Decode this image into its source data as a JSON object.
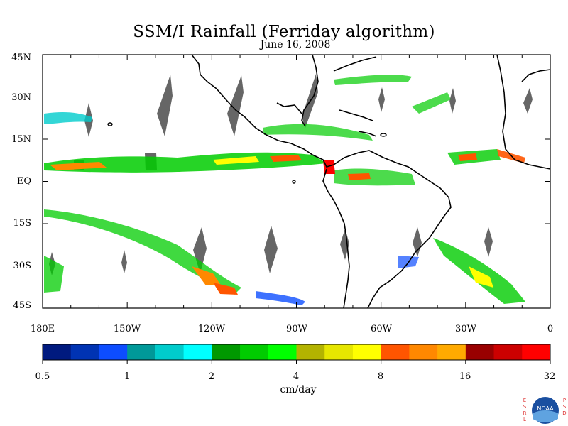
{
  "map": {
    "title": "SSM/I Rainfall (Ferriday algorithm)",
    "subtitle": "June 16, 2008",
    "lat_labels": [
      "45N",
      "30N",
      "15N",
      "EQ",
      "15S",
      "30S",
      "45S"
    ],
    "lon_labels": [
      "180E",
      "150W",
      "120W",
      "90W",
      "60W",
      "30W",
      "0"
    ],
    "legend": {
      "units": "cm/day",
      "tick_labels": [
        "0.5",
        "1",
        "2",
        "4",
        "8",
        "16",
        "32"
      ],
      "colors": [
        "#001a7f",
        "#0033b3",
        "#0d4dff",
        "#009999",
        "#00cccc",
        "#00ffff",
        "#009900",
        "#00cc00",
        "#00ff00",
        "#b3b300",
        "#e6e600",
        "#ffff00",
        "#ff5500",
        "#ff8800",
        "#ffaa00",
        "#990000",
        "#cc0000",
        "#ff0000"
      ]
    },
    "colors": {
      "land_outline": "#000000",
      "no_data": "#666666",
      "background": "#ffffff"
    },
    "logo": {
      "left_letters": "ESRL",
      "right_letters": "PSD",
      "emblem": "NOAA"
    }
  }
}
